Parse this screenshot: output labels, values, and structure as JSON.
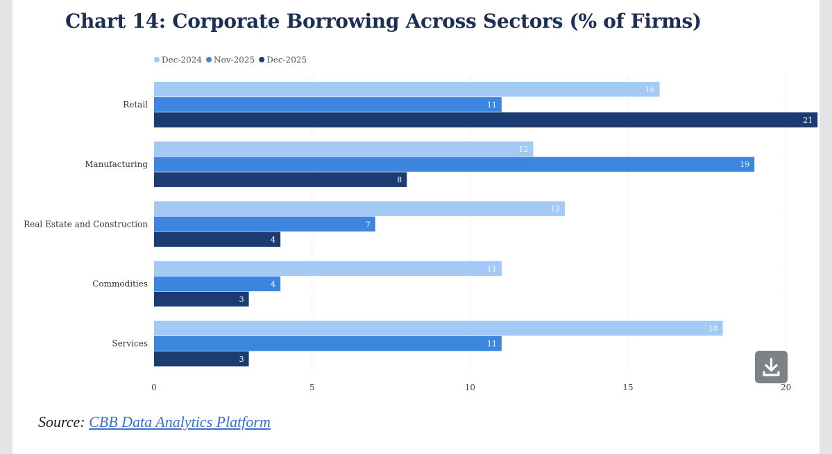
{
  "title": "Chart 14: Corporate Borrowing Across Sectors (% of Firms)",
  "source": {
    "prefix": "Source:",
    "link_text": "CBB Data Analytics Platform"
  },
  "download_icon": "download-icon",
  "colors": {
    "dec2024": "#a2caf5",
    "nov2025": "#3d86e0",
    "dec2025": "#1b3c72"
  },
  "chart_data": {
    "type": "bar",
    "orientation": "horizontal",
    "title": "Chart 14: Corporate Borrowing Across Sectors (% of Firms)",
    "categories": [
      "Retail",
      "Manufacturing",
      "Real Estate and Construction",
      "Commodities",
      "Services"
    ],
    "series": [
      {
        "name": "Dec-2024",
        "values": [
          16,
          12,
          13,
          11,
          18
        ],
        "color": "#a2caf5"
      },
      {
        "name": "Nov-2025",
        "values": [
          11,
          19,
          7,
          4,
          11
        ],
        "color": "#3d86e0"
      },
      {
        "name": "Dec-2025",
        "values": [
          21,
          8,
          4,
          3,
          3
        ],
        "color": "#1b3c72"
      }
    ],
    "x_ticks": [
      0,
      5,
      10,
      15,
      20
    ],
    "xlim": [
      0,
      20.6
    ],
    "grid": true,
    "legend": "top-left",
    "xlabel": "",
    "ylabel": ""
  }
}
